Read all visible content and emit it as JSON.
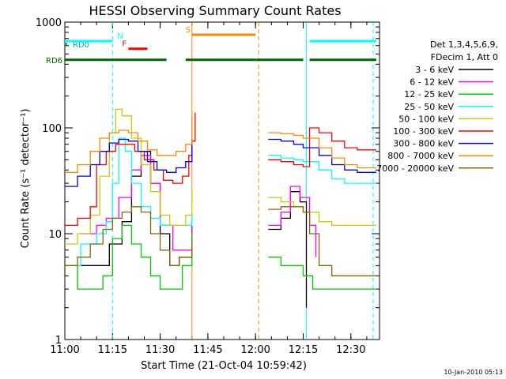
{
  "chart_data": {
    "type": "line",
    "title": "HESSI Observing Summary Count Rates",
    "xlabel": "Start Time (21-Oct-04 10:59:42)",
    "ylabel": "Count Rate (s⁻¹ detector⁻¹)",
    "y_scale": "log",
    "ylim": [
      1,
      1000
    ],
    "y_ticks": [
      {
        "value": 1,
        "label": "1"
      },
      {
        "value": 10,
        "label": "10"
      },
      {
        "value": 100,
        "label": "100"
      },
      {
        "value": 1000,
        "label": "1000"
      }
    ],
    "xlim": [
      "11:00",
      "12:39"
    ],
    "x_ticks": [
      "11:00",
      "11:15",
      "11:30",
      "11:45",
      "12:00",
      "12:15",
      "12:30"
    ],
    "legend_header": [
      "Det 1,3,4,5,6,9,",
      "FDecim 1, Att 0"
    ],
    "legend_position": "right",
    "series": [
      {
        "name": "3 - 6 keV",
        "color": "#000000",
        "points": [
          [
            "11:05",
            5
          ],
          [
            "11:10",
            5
          ],
          [
            "11:14",
            8
          ],
          [
            "11:18",
            13
          ],
          [
            "11:21",
            35
          ],
          [
            "11:24",
            60
          ],
          [
            "11:27",
            30
          ],
          [
            "11:30",
            10
          ],
          [
            "11:33",
            5
          ],
          [
            "11:36",
            6
          ],
          [
            "11:40",
            12
          ],
          [
            "11:41",
            null
          ],
          [
            "12:04",
            11
          ],
          [
            "12:08",
            14
          ],
          [
            "12:11",
            25
          ],
          [
            "12:14",
            20
          ],
          [
            "12:16",
            2
          ],
          [
            "12:17",
            null
          ]
        ]
      },
      {
        "name": "6 - 12 keV",
        "color": "#ff00ff",
        "points": [
          [
            "11:05",
            10
          ],
          [
            "11:10",
            12
          ],
          [
            "11:13",
            14
          ],
          [
            "11:17",
            22
          ],
          [
            "11:21",
            40
          ],
          [
            "11:24",
            55
          ],
          [
            "11:27",
            30
          ],
          [
            "11:30",
            12
          ],
          [
            "11:34",
            7
          ],
          [
            "11:38",
            7
          ],
          [
            "11:40",
            13
          ],
          [
            "11:41",
            null
          ],
          [
            "12:04",
            12
          ],
          [
            "12:08",
            16
          ],
          [
            "12:11",
            28
          ],
          [
            "12:14",
            22
          ],
          [
            "12:17",
            12
          ],
          [
            "12:19",
            6
          ],
          [
            "12:20",
            null
          ]
        ]
      },
      {
        "name": "12 - 25 keV",
        "color": "#00cc00",
        "points": [
          [
            "11:00",
            5
          ],
          [
            "11:04",
            3
          ],
          [
            "11:08",
            3
          ],
          [
            "11:12",
            4
          ],
          [
            "11:15",
            9
          ],
          [
            "11:18",
            12
          ],
          [
            "11:21",
            8
          ],
          [
            "11:24",
            6
          ],
          [
            "11:27",
            4
          ],
          [
            "11:30",
            3
          ],
          [
            "11:34",
            3
          ],
          [
            "11:37",
            5
          ],
          [
            "11:40",
            10
          ],
          [
            "11:41",
            null
          ],
          [
            "12:04",
            6
          ],
          [
            "12:08",
            5
          ],
          [
            "12:12",
            5
          ],
          [
            "12:15",
            4
          ],
          [
            "12:18",
            3
          ],
          [
            "12:22",
            3
          ],
          [
            "12:26",
            3
          ],
          [
            "12:30",
            3
          ],
          [
            "12:35",
            3
          ],
          [
            "12:38",
            3
          ]
        ]
      },
      {
        "name": "25 - 50 keV",
        "color": "#00ffff",
        "points": [
          [
            "11:00",
            5
          ],
          [
            "11:05",
            8
          ],
          [
            "11:10",
            10
          ],
          [
            "11:13",
            13
          ],
          [
            "11:15",
            30
          ],
          [
            "11:17",
            80
          ],
          [
            "11:19",
            60
          ],
          [
            "11:21",
            30
          ],
          [
            "11:24",
            18
          ],
          [
            "11:27",
            14
          ],
          [
            "11:30",
            12
          ],
          [
            "11:34",
            12
          ],
          [
            "11:38",
            12
          ],
          [
            "11:40",
            16
          ],
          [
            "11:41",
            null
          ],
          [
            "12:04",
            55
          ],
          [
            "12:08",
            52
          ],
          [
            "12:12",
            50
          ],
          [
            "12:15",
            48
          ],
          [
            "12:17",
            48
          ],
          [
            "12:20",
            40
          ],
          [
            "12:24",
            33
          ],
          [
            "12:28",
            30
          ],
          [
            "12:32",
            30
          ],
          [
            "12:36",
            30
          ],
          [
            "12:38",
            30
          ]
        ]
      },
      {
        "name": "50 - 100 keV",
        "color": "#cccc00",
        "points": [
          [
            "11:00",
            8
          ],
          [
            "11:04",
            10
          ],
          [
            "11:08",
            15
          ],
          [
            "11:11",
            35
          ],
          [
            "11:14",
            90
          ],
          [
            "11:16",
            150
          ],
          [
            "11:18",
            130
          ],
          [
            "11:21",
            80
          ],
          [
            "11:24",
            45
          ],
          [
            "11:27",
            25
          ],
          [
            "11:30",
            15
          ],
          [
            "11:33",
            12
          ],
          [
            "11:36",
            12
          ],
          [
            "11:38",
            15
          ],
          [
            "11:40",
            25
          ],
          [
            "11:41",
            null
          ],
          [
            "12:04",
            22
          ],
          [
            "12:08",
            20
          ],
          [
            "12:12",
            18
          ],
          [
            "12:15",
            16
          ],
          [
            "12:17",
            16
          ],
          [
            "12:20",
            13
          ],
          [
            "12:24",
            12
          ],
          [
            "12:28",
            12
          ],
          [
            "12:32",
            12
          ],
          [
            "12:36",
            12
          ],
          [
            "12:38",
            12
          ]
        ]
      },
      {
        "name": "100 - 300 keV",
        "color": "#ff0000",
        "points": [
          [
            "11:00",
            12
          ],
          [
            "11:04",
            14
          ],
          [
            "11:08",
            18
          ],
          [
            "11:10",
            45
          ],
          [
            "11:13",
            60
          ],
          [
            "11:16",
            70
          ],
          [
            "11:19",
            70
          ],
          [
            "11:22",
            60
          ],
          [
            "11:25",
            50
          ],
          [
            "11:28",
            40
          ],
          [
            "11:31",
            32
          ],
          [
            "11:34",
            30
          ],
          [
            "11:37",
            35
          ],
          [
            "11:39",
            55
          ],
          [
            "11:40",
            75
          ],
          [
            "11:41",
            140
          ],
          [
            "11:42",
            null
          ],
          [
            "12:04",
            50
          ],
          [
            "12:08",
            48
          ],
          [
            "12:12",
            45
          ],
          [
            "12:15",
            43
          ],
          [
            "12:17",
            100
          ],
          [
            "12:20",
            90
          ],
          [
            "12:24",
            75
          ],
          [
            "12:28",
            65
          ],
          [
            "12:32",
            62
          ],
          [
            "12:36",
            62
          ],
          [
            "12:38",
            62
          ]
        ]
      },
      {
        "name": "300 - 800 keV",
        "color": "#0000ff",
        "points": [
          [
            "11:00",
            28
          ],
          [
            "11:04",
            35
          ],
          [
            "11:08",
            45
          ],
          [
            "11:11",
            60
          ],
          [
            "11:14",
            72
          ],
          [
            "11:17",
            78
          ],
          [
            "11:20",
            75
          ],
          [
            "11:23",
            60
          ],
          [
            "11:26",
            48
          ],
          [
            "11:29",
            40
          ],
          [
            "11:32",
            38
          ],
          [
            "11:35",
            42
          ],
          [
            "11:38",
            48
          ],
          [
            "11:40",
            80
          ],
          [
            "11:41",
            null
          ],
          [
            "12:04",
            78
          ],
          [
            "12:08",
            75
          ],
          [
            "12:12",
            70
          ],
          [
            "12:15",
            65
          ],
          [
            "12:17",
            65
          ],
          [
            "12:20",
            55
          ],
          [
            "12:24",
            45
          ],
          [
            "12:28",
            40
          ],
          [
            "12:32",
            38
          ],
          [
            "12:36",
            38
          ],
          [
            "12:38",
            38
          ]
        ]
      },
      {
        "name": "800 - 7000 keV",
        "color": "#ff8800",
        "points": [
          [
            "11:00",
            38
          ],
          [
            "11:04",
            45
          ],
          [
            "11:08",
            60
          ],
          [
            "11:11",
            80
          ],
          [
            "11:14",
            90
          ],
          [
            "11:17",
            95
          ],
          [
            "11:20",
            90
          ],
          [
            "11:23",
            75
          ],
          [
            "11:26",
            62
          ],
          [
            "11:29",
            55
          ],
          [
            "11:32",
            55
          ],
          [
            "11:35",
            60
          ],
          [
            "11:38",
            70
          ],
          [
            "11:40",
            130
          ],
          [
            "11:41",
            null
          ],
          [
            "12:04",
            90
          ],
          [
            "12:08",
            88
          ],
          [
            "12:12",
            85
          ],
          [
            "12:15",
            80
          ],
          [
            "12:17",
            80
          ],
          [
            "12:20",
            65
          ],
          [
            "12:24",
            52
          ],
          [
            "12:28",
            45
          ],
          [
            "12:32",
            42
          ],
          [
            "12:36",
            42
          ],
          [
            "12:38",
            42
          ]
        ]
      },
      {
        "name": "7000 - 20000 keV",
        "color": "#886600",
        "points": [
          [
            "11:00",
            5
          ],
          [
            "11:04",
            6
          ],
          [
            "11:08",
            8
          ],
          [
            "11:12",
            11
          ],
          [
            "11:15",
            14
          ],
          [
            "11:18",
            16
          ],
          [
            "11:21",
            18
          ],
          [
            "11:24",
            16
          ],
          [
            "11:27",
            10
          ],
          [
            "11:30",
            7
          ],
          [
            "11:33",
            5
          ],
          [
            "11:36",
            6
          ],
          [
            "11:40",
            9
          ],
          [
            "11:41",
            null
          ],
          [
            "12:04",
            17
          ],
          [
            "12:08",
            18
          ],
          [
            "12:12",
            18
          ],
          [
            "12:15",
            16
          ],
          [
            "12:17",
            10
          ],
          [
            "12:20",
            5
          ],
          [
            "12:24",
            4
          ],
          [
            "12:28",
            4
          ],
          [
            "12:32",
            4
          ],
          [
            "12:36",
            4
          ],
          [
            "12:38",
            4
          ]
        ]
      }
    ],
    "flag_bars": [
      {
        "label": "RD0",
        "color": "#00aaaa",
        "segments": [
          [
            "11:00",
            "11:00"
          ]
        ],
        "level": 620
      },
      {
        "label": "RD6",
        "color": "#006600",
        "segments": [
          [
            "11:00",
            "11:32"
          ],
          [
            "11:38",
            "12:00"
          ],
          [
            "12:00",
            "12:15"
          ],
          [
            "12:17",
            "12:38"
          ]
        ],
        "level": 440
      },
      {
        "label": "N",
        "color": "#00ffff",
        "segments": [
          [
            "11:00",
            "11:15"
          ],
          [
            "12:17",
            "12:38"
          ]
        ],
        "level": 660
      },
      {
        "label": "F",
        "color": "#ff0000",
        "segments": [
          [
            "11:20",
            "11:26"
          ]
        ],
        "level": 560
      },
      {
        "label": "S",
        "color": "#ff8800",
        "segments": [
          [
            "11:40",
            "12:00"
          ]
        ],
        "level": 760
      }
    ],
    "vertical_markers": [
      {
        "x": "11:15",
        "color": "#00ffff",
        "style": "dashed"
      },
      {
        "x": "11:40",
        "color": "#ff8800",
        "style": "solid"
      },
      {
        "x": "12:01",
        "color": "#ff8800",
        "style": "dashed"
      },
      {
        "x": "12:16",
        "color": "#00ffff",
        "style": "solid"
      },
      {
        "x": "12:37",
        "color": "#00ffff",
        "style": "dashed"
      }
    ],
    "grid": false
  },
  "footer": {
    "timestamp": "10-Jan-2010 05:13"
  }
}
